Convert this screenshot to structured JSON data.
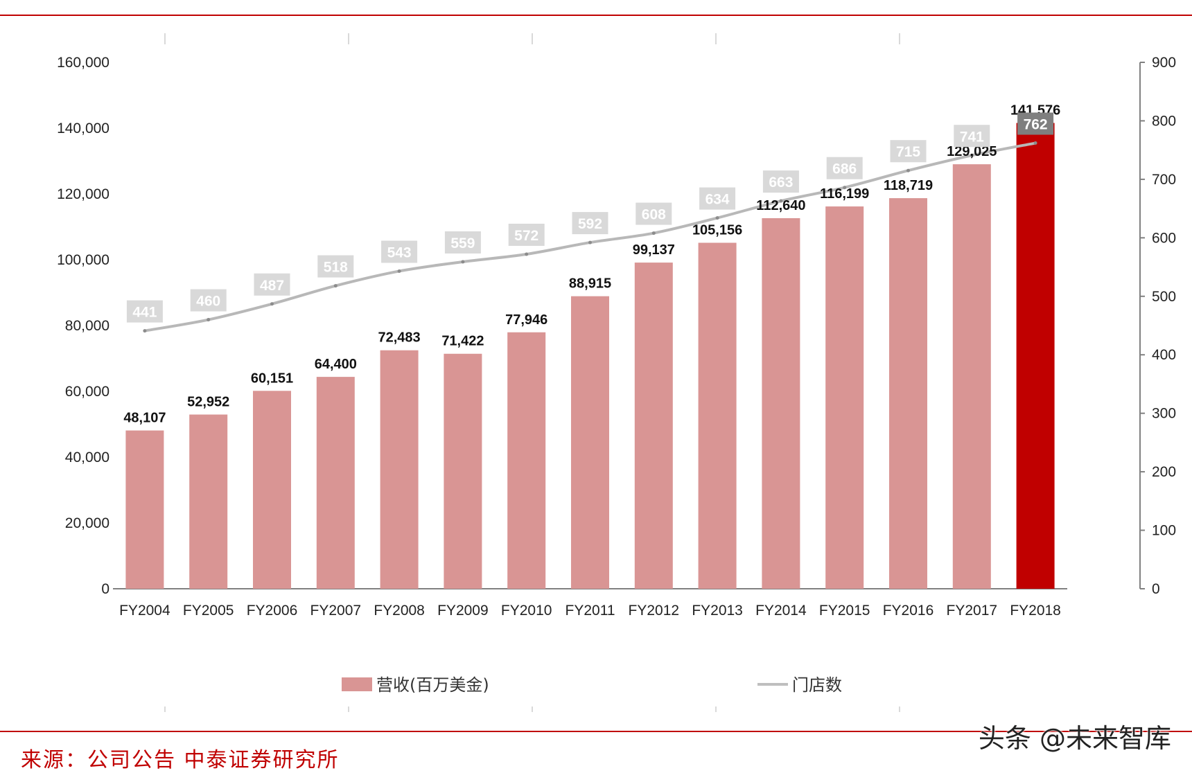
{
  "chart_data": {
    "type": "bar",
    "categories": [
      "FY2004",
      "FY2005",
      "FY2006",
      "FY2007",
      "FY2008",
      "FY2009",
      "FY2010",
      "FY2011",
      "FY2012",
      "FY2013",
      "FY2014",
      "FY2015",
      "FY2016",
      "FY2017",
      "FY2018"
    ],
    "series": [
      {
        "name": "营收(百万美金)",
        "type": "bar",
        "axis": "left",
        "values": [
          48107,
          52952,
          60151,
          64400,
          72483,
          71422,
          77946,
          88915,
          99137,
          105156,
          112640,
          116199,
          118719,
          129025,
          141576
        ],
        "labels": [
          "48,107",
          "52,952",
          "60,151",
          "64,400",
          "72,483",
          "71,422",
          "77,946",
          "88,915",
          "99,137",
          "105,156",
          "112,640",
          "116,199",
          "118,719",
          "129,025",
          "141,576"
        ]
      },
      {
        "name": "门店数",
        "type": "line",
        "axis": "right",
        "values": [
          441,
          460,
          487,
          518,
          543,
          559,
          572,
          592,
          608,
          634,
          663,
          686,
          715,
          741,
          762
        ],
        "labels": [
          "441",
          "460",
          "487",
          "518",
          "543",
          "559",
          "572",
          "592",
          "608",
          "634",
          "663",
          "686",
          "715",
          "741",
          "762"
        ]
      }
    ],
    "y_left": {
      "lim": [
        0,
        160000
      ],
      "ticks": [
        "0",
        "20,000",
        "40,000",
        "60,000",
        "80,000",
        "100,000",
        "120,000",
        "140,000",
        "160,000"
      ]
    },
    "y_right": {
      "lim": [
        0,
        900
      ],
      "ticks": [
        "0",
        "100",
        "200",
        "300",
        "400",
        "500",
        "600",
        "700",
        "800",
        "900"
      ]
    },
    "legend_position": "bottom",
    "colors": {
      "bar": "#d99594",
      "bar_highlight": "#c00000",
      "line": "#bfbfbf",
      "label_box": "#d9d9d9",
      "label_box_highlight": "#7f7f7f",
      "rule": "#c00000"
    },
    "highlight_index": 14
  },
  "footer": {
    "source": "来源：公司公告 中泰证券研究所",
    "watermark": "头条 @未来智库"
  }
}
